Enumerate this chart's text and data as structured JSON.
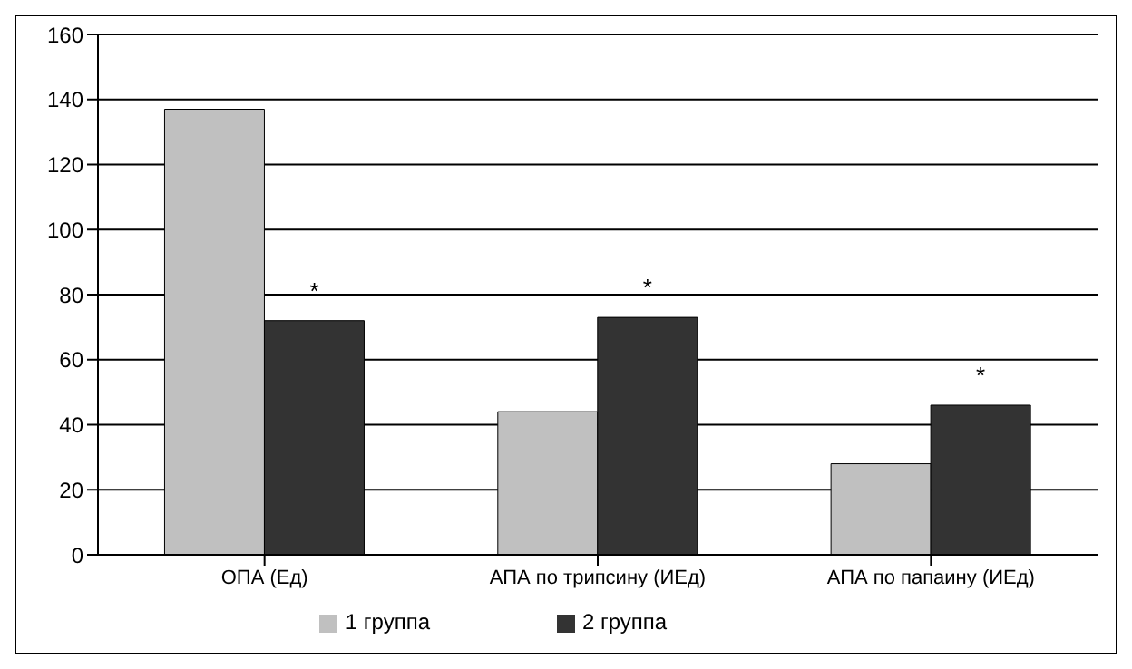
{
  "chart_data": {
    "type": "bar",
    "categories": [
      "ОПА (Ед)",
      "АПА по трипсину (ИЕд)",
      "АПА по папаину (ИЕд)"
    ],
    "series": [
      {
        "name": "1 группа",
        "color": "#c0c0c0",
        "values": [
          137,
          44,
          28
        ]
      },
      {
        "name": "2 группа",
        "color": "#333333",
        "values": [
          72,
          73,
          46
        ]
      }
    ],
    "ylim": [
      0,
      160
    ],
    "yticks": [
      0,
      20,
      40,
      60,
      80,
      100,
      120,
      140,
      160
    ],
    "grid": "y",
    "legend": "bottom",
    "annotations": [
      {
        "text": "*",
        "x": "ОПА (Ед)",
        "y": 72
      },
      {
        "text": "*",
        "x": "АПА по трипсину (ИЕд)",
        "y": 73
      },
      {
        "text": "*",
        "x": "АПА по папаину (ИЕд)",
        "y": 46
      }
    ]
  }
}
